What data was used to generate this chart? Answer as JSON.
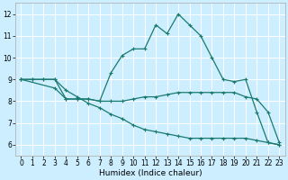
{
  "xlabel": "Humidex (Indice chaleur)",
  "xlim": [
    -0.5,
    23.5
  ],
  "ylim": [
    5.5,
    12.5
  ],
  "yticks": [
    6,
    7,
    8,
    9,
    10,
    11,
    12
  ],
  "xticks": [
    0,
    1,
    2,
    3,
    4,
    5,
    6,
    7,
    8,
    9,
    10,
    11,
    12,
    13,
    14,
    15,
    16,
    17,
    18,
    19,
    20,
    21,
    22,
    23
  ],
  "bg_color": "#cceeff",
  "grid_color": "#ffffff",
  "line_color": "#1a7a6e",
  "line1_x": [
    0,
    1,
    2,
    3,
    4,
    5,
    6,
    7,
    8,
    9,
    10,
    11,
    12,
    13,
    14,
    15,
    16,
    17,
    18,
    19,
    20,
    21,
    22,
    23
  ],
  "line1_y": [
    9,
    9,
    9,
    9,
    8.1,
    8.1,
    8.1,
    8.0,
    9.3,
    10.1,
    10.4,
    10.4,
    11.5,
    11.1,
    12.0,
    11.5,
    11.0,
    10.0,
    9.0,
    8.9,
    9.0,
    7.5,
    6.1,
    6.0
  ],
  "line2_x": [
    0,
    3,
    4,
    5,
    6,
    7,
    8,
    9,
    10,
    11,
    12,
    13,
    14,
    15,
    16,
    17,
    18,
    19,
    20,
    21,
    22,
    23
  ],
  "line2_y": [
    9,
    8.6,
    8.1,
    8.1,
    8.1,
    8.0,
    8.0,
    8.0,
    8.1,
    8.2,
    8.2,
    8.3,
    8.4,
    8.4,
    8.4,
    8.4,
    8.4,
    8.4,
    8.2,
    8.1,
    7.5,
    6.1
  ],
  "line3_x": [
    0,
    1,
    2,
    3,
    4,
    5,
    6,
    7,
    8,
    9,
    10,
    11,
    12,
    13,
    14,
    15,
    16,
    17,
    18,
    19,
    20,
    21,
    22,
    23
  ],
  "line3_y": [
    9.0,
    9.0,
    9.0,
    9.0,
    8.5,
    8.2,
    7.9,
    7.7,
    7.4,
    7.2,
    6.9,
    6.7,
    6.6,
    6.5,
    6.4,
    6.3,
    6.3,
    6.3,
    6.3,
    6.3,
    6.3,
    6.2,
    6.1,
    6.0
  ]
}
